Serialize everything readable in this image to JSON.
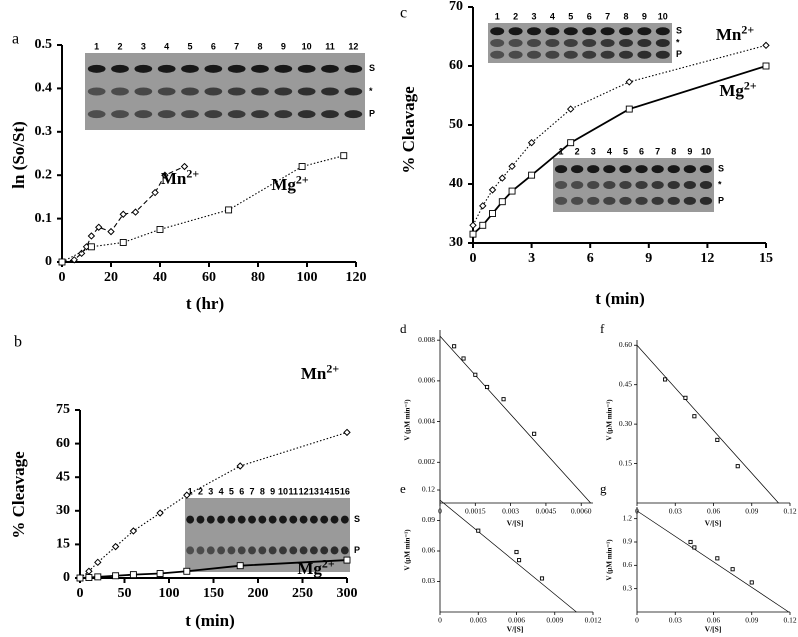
{
  "chart_data": [
    {
      "type": "line",
      "panel": "a",
      "xlabel": "t (hr)",
      "ylabel": "ln (So/St)",
      "xlim": [
        0,
        120
      ],
      "ylim": [
        0,
        0.5
      ],
      "xticks": [
        0,
        20,
        40,
        60,
        80,
        100,
        120
      ],
      "yticks": [
        0,
        0.1,
        0.2,
        0.3,
        0.4,
        0.5
      ],
      "series": [
        {
          "name": "Mn2+",
          "color": "#000000",
          "marker": "diamond",
          "dash": "dashed",
          "x": [
            0,
            5,
            8,
            10,
            12,
            15,
            20,
            25,
            30,
            38,
            42,
            50
          ],
          "values": [
            0,
            0.005,
            0.02,
            0.035,
            0.06,
            0.08,
            0.07,
            0.11,
            0.115,
            0.16,
            0.2,
            0.22
          ]
        },
        {
          "name": "Mg2+",
          "color": "#000000",
          "marker": "square",
          "dash": "dotted",
          "x": [
            0,
            12,
            25,
            40,
            68,
            98,
            115
          ],
          "values": [
            0,
            0.035,
            0.045,
            0.075,
            0.12,
            0.22,
            0.245
          ]
        }
      ],
      "gels": [
        {
          "lanes": [
            1,
            2,
            3,
            4,
            5,
            6,
            7,
            8,
            9,
            10,
            11,
            12
          ],
          "labels": [
            "S",
            "*",
            "P"
          ]
        }
      ]
    },
    {
      "type": "line",
      "panel": "b",
      "xlabel": "t (min)",
      "ylabel": "% Cleavage",
      "xlim": [
        0,
        300
      ],
      "ylim": [
        0,
        75
      ],
      "xticks": [
        0,
        50,
        100,
        150,
        200,
        250,
        300
      ],
      "yticks": [
        0,
        15,
        30,
        45,
        60,
        75
      ],
      "series": [
        {
          "name": "Mn2+",
          "color": "#000000",
          "marker": "diamond",
          "dash": "dotted",
          "x": [
            0,
            10,
            20,
            40,
            60,
            90,
            120,
            180,
            300
          ],
          "values": [
            0,
            3,
            7,
            14,
            21,
            29,
            37,
            50,
            65
          ]
        },
        {
          "name": "Mg2+",
          "color": "#000000",
          "marker": "square",
          "dash": "solid",
          "x": [
            0,
            10,
            20,
            40,
            60,
            90,
            120,
            180,
            300
          ],
          "values": [
            0,
            0.2,
            0.5,
            1,
            1.5,
            2,
            3,
            5.5,
            8
          ]
        }
      ],
      "gels": [
        {
          "lanes": [
            1,
            2,
            3,
            4,
            5,
            6,
            7,
            8,
            9,
            10,
            11,
            12,
            13,
            14,
            15,
            16
          ],
          "labels": [
            "S",
            "P"
          ]
        }
      ]
    },
    {
      "type": "line",
      "panel": "c",
      "xlabel": "t (min)",
      "ylabel": "% Cleavage",
      "xlim": [
        0,
        15
      ],
      "ylim": [
        30,
        70
      ],
      "xticks": [
        0,
        3,
        6,
        9,
        12,
        15
      ],
      "yticks": [
        30,
        40,
        50,
        60,
        70
      ],
      "series": [
        {
          "name": "Mn2+",
          "color": "#000000",
          "marker": "diamond",
          "dash": "dotted",
          "x": [
            0,
            0.5,
            1,
            1.5,
            2,
            3,
            5,
            8,
            15
          ],
          "values": [
            33,
            36.3,
            39,
            41,
            43,
            47,
            52.7,
            57.3,
            63.5
          ]
        },
        {
          "name": "Mg2+",
          "color": "#000000",
          "marker": "square",
          "dash": "solid",
          "x": [
            0,
            0.5,
            1,
            1.5,
            2,
            3,
            5,
            8,
            15
          ],
          "values": [
            31.5,
            33,
            35,
            37,
            38.8,
            41.5,
            47,
            52.7,
            60
          ]
        }
      ],
      "gels": [
        {
          "lanes": [
            1,
            2,
            3,
            4,
            5,
            6,
            7,
            8,
            9,
            10
          ],
          "labels": [
            "S",
            "*",
            "P"
          ]
        },
        {
          "lanes": [
            1,
            2,
            3,
            4,
            5,
            6,
            7,
            8,
            9,
            10
          ],
          "labels": [
            "S",
            "*",
            "P"
          ]
        }
      ]
    },
    {
      "type": "scatter",
      "panel": "d",
      "xlabel": "V/[S]",
      "ylabel": "V (μM min⁻¹)",
      "xlim": [
        0,
        0.0065
      ],
      "ylim": [
        0,
        0.0085
      ],
      "xticks": [
        0,
        0.0015,
        0.003,
        0.0045,
        {
          "value": 0.006,
          "label": "0.0060"
        }
      ],
      "yticks": [
        0.002,
        0.004,
        0.006,
        0.008
      ],
      "series": [
        {
          "color": "#000000",
          "marker": "square",
          "x": [
            0.0006,
            0.001,
            0.0015,
            0.002,
            0.0027,
            0.004
          ],
          "values": [
            0.0077,
            0.0071,
            0.0063,
            0.0057,
            0.0051,
            0.0034
          ]
        }
      ],
      "fit": {
        "x": [
          0,
          0.0064
        ],
        "values": [
          0.0082,
          0
        ]
      }
    },
    {
      "type": "scatter",
      "panel": "f",
      "xlabel": "V/[S]",
      "ylabel": "V (μM min⁻¹)",
      "xlim": [
        0,
        0.12
      ],
      "ylim": [
        0,
        0.62
      ],
      "xticks": [
        0,
        0.03,
        0.06,
        0.09,
        0.12
      ],
      "yticks": [
        0.15,
        {
          "value": 0.3,
          "label": "0.30"
        },
        0.45,
        {
          "value": 0.6,
          "label": "0.60"
        }
      ],
      "series": [
        {
          "color": "#000000",
          "marker": "square",
          "x": [
            0.022,
            0.038,
            0.045,
            0.063,
            0.079
          ],
          "values": [
            0.47,
            0.4,
            0.33,
            0.24,
            0.14
          ]
        }
      ],
      "fit": {
        "x": [
          0,
          0.111
        ],
        "values": [
          0.6,
          0
        ]
      }
    },
    {
      "type": "scatter",
      "panel": "e",
      "xlabel": "V/[S]",
      "ylabel": "V (μM min⁻¹)",
      "xlim": [
        0,
        0.012
      ],
      "ylim": [
        0,
        0.12
      ],
      "xticks": [
        0,
        0.003,
        0.006,
        0.009,
        0.012
      ],
      "yticks": [
        0.03,
        0.06,
        0.09,
        0.12
      ],
      "series": [
        {
          "color": "#000000",
          "marker": "square",
          "x": [
            0.003,
            0.006,
            0.0062,
            0.008
          ],
          "values": [
            0.08,
            0.059,
            0.051,
            0.033
          ]
        }
      ],
      "fit": {
        "x": [
          0,
          0.0107
        ],
        "values": [
          0.11,
          0
        ]
      }
    },
    {
      "type": "scatter",
      "panel": "g",
      "xlabel": "V/[S]",
      "ylabel": "V (μM min⁻¹)",
      "xlim": [
        0,
        0.12
      ],
      "ylim": [
        0,
        1.35
      ],
      "xticks": [
        0,
        0.03,
        0.06,
        0.09,
        0.12
      ],
      "yticks": [
        0.3,
        0.6,
        0.9,
        1.2
      ],
      "series": [
        {
          "color": "#000000",
          "marker": "square",
          "x": [
            0.042,
            0.045,
            0.063,
            0.075,
            0.09
          ],
          "values": [
            0.9,
            0.83,
            0.69,
            0.55,
            0.38
          ]
        }
      ],
      "fit": {
        "x": [
          0,
          0.119
        ],
        "values": [
          1.3,
          0
        ]
      }
    }
  ]
}
